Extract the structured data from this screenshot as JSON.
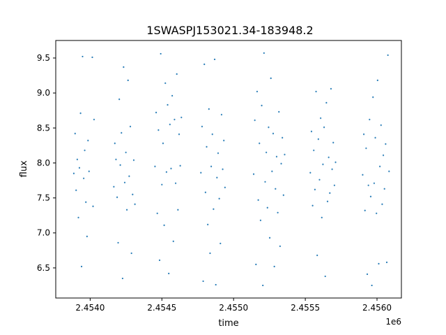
{
  "chart_data": {
    "type": "scatter",
    "title": "1SWASPJ153021.34-183948.2",
    "xlabel": "time",
    "ylabel": "flux",
    "x_offset_label": "1e6",
    "xlim": [
      2453760,
      2456170
    ],
    "ylim": [
      6.07,
      9.75
    ],
    "x_ticks": [
      2454000,
      2454500,
      2455000,
      2455500,
      2456000
    ],
    "x_tick_labels": [
      "2.4540",
      "2.4545",
      "2.4550",
      "2.4555",
      "2.4560"
    ],
    "y_ticks": [
      6.5,
      7.0,
      7.5,
      8.0,
      8.5,
      9.0,
      9.5
    ],
    "y_tick_labels": [
      "6.5",
      "7.0",
      "7.5",
      "8.0",
      "8.5",
      "9.0",
      "9.5"
    ],
    "grid": false,
    "marker_color": "#1f77b4",
    "series": [
      {
        "values": [
          [
            2453886,
            7.85
          ],
          [
            2453895,
            8.42
          ],
          [
            2453902,
            7.61
          ],
          [
            2453910,
            8.05
          ],
          [
            2453918,
            7.22
          ],
          [
            2453925,
            7.93
          ],
          [
            2453933,
            8.71
          ],
          [
            2453940,
            6.52
          ],
          [
            2453947,
            9.52
          ],
          [
            2453955,
            7.78
          ],
          [
            2453962,
            8.18
          ],
          [
            2453970,
            7.44
          ],
          [
            2453978,
            6.95
          ],
          [
            2453985,
            8.32
          ],
          [
            2453992,
            7.88
          ],
          [
            2454015,
            9.51
          ],
          [
            2454020,
            7.38
          ],
          [
            2454027,
            8.62
          ],
          [
            2454165,
            7.66
          ],
          [
            2454172,
            8.28
          ],
          [
            2454180,
            8.05
          ],
          [
            2454188,
            7.51
          ],
          [
            2454195,
            6.86
          ],
          [
            2454203,
            8.91
          ],
          [
            2454210,
            7.97
          ],
          [
            2454218,
            8.43
          ],
          [
            2454226,
            6.35
          ],
          [
            2454233,
            9.37
          ],
          [
            2454241,
            7.72
          ],
          [
            2454249,
            8.15
          ],
          [
            2454256,
            7.33
          ],
          [
            2454264,
            9.18
          ],
          [
            2454272,
            7.81
          ],
          [
            2454280,
            8.52
          ],
          [
            2454288,
            6.71
          ],
          [
            2454296,
            7.55
          ],
          [
            2454304,
            8.04
          ],
          [
            2454312,
            7.41
          ],
          [
            2454452,
            7.95
          ],
          [
            2454460,
            8.72
          ],
          [
            2454468,
            7.28
          ],
          [
            2454476,
            8.47
          ],
          [
            2454484,
            6.61
          ],
          [
            2454492,
            9.56
          ],
          [
            2454500,
            7.69
          ],
          [
            2454508,
            8.28
          ],
          [
            2454516,
            7.11
          ],
          [
            2454524,
            9.14
          ],
          [
            2454532,
            7.87
          ],
          [
            2454540,
            8.83
          ],
          [
            2454548,
            6.42
          ],
          [
            2454556,
            8.55
          ],
          [
            2454564,
            7.92
          ],
          [
            2454572,
            8.96
          ],
          [
            2454580,
            6.88
          ],
          [
            2454588,
            8.62
          ],
          [
            2454596,
            7.71
          ],
          [
            2454604,
            9.27
          ],
          [
            2454612,
            7.33
          ],
          [
            2454620,
            8.41
          ],
          [
            2454628,
            7.96
          ],
          [
            2454636,
            8.65
          ],
          [
            2454772,
            7.86
          ],
          [
            2454780,
            8.52
          ],
          [
            2454788,
            6.31
          ],
          [
            2454796,
            9.41
          ],
          [
            2454804,
            7.58
          ],
          [
            2454812,
            8.23
          ],
          [
            2454820,
            7.12
          ],
          [
            2454828,
            8.77
          ],
          [
            2454836,
            6.71
          ],
          [
            2454844,
            7.95
          ],
          [
            2454852,
            8.41
          ],
          [
            2454860,
            7.34
          ],
          [
            2454868,
            9.48
          ],
          [
            2454876,
            6.26
          ],
          [
            2454884,
            7.79
          ],
          [
            2454892,
            8.14
          ],
          [
            2454900,
            7.49
          ],
          [
            2454908,
            6.85
          ],
          [
            2454916,
            8.69
          ],
          [
            2454924,
            7.91
          ],
          [
            2454932,
            8.32
          ],
          [
            2454940,
            7.65
          ],
          [
            2455140,
            7.84
          ],
          [
            2455148,
            8.61
          ],
          [
            2455156,
            6.55
          ],
          [
            2455164,
            9.02
          ],
          [
            2455172,
            7.47
          ],
          [
            2455180,
            8.28
          ],
          [
            2455188,
            7.18
          ],
          [
            2455196,
            8.82
          ],
          [
            2455204,
            6.25
          ],
          [
            2455212,
            9.57
          ],
          [
            2455220,
            7.73
          ],
          [
            2455228,
            8.15
          ],
          [
            2455236,
            7.36
          ],
          [
            2455244,
            8.51
          ],
          [
            2455252,
            6.93
          ],
          [
            2455260,
            9.21
          ],
          [
            2455268,
            7.88
          ],
          [
            2455276,
            8.42
          ],
          [
            2455284,
            6.52
          ],
          [
            2455292,
            7.63
          ],
          [
            2455300,
            8.09
          ],
          [
            2455308,
            7.29
          ],
          [
            2455316,
            8.73
          ],
          [
            2455324,
            6.81
          ],
          [
            2455332,
            7.99
          ],
          [
            2455340,
            8.36
          ],
          [
            2455348,
            7.54
          ],
          [
            2455356,
            8.12
          ],
          [
            2455535,
            7.86
          ],
          [
            2455543,
            8.45
          ],
          [
            2455551,
            7.39
          ],
          [
            2455559,
            8.18
          ],
          [
            2455567,
            7.62
          ],
          [
            2455575,
            9.02
          ],
          [
            2455583,
            6.68
          ],
          [
            2455591,
            8.34
          ],
          [
            2455599,
            7.76
          ],
          [
            2455607,
            8.64
          ],
          [
            2455615,
            7.22
          ],
          [
            2455623,
            7.98
          ],
          [
            2455631,
            8.51
          ],
          [
            2455639,
            6.38
          ],
          [
            2455647,
            8.86
          ],
          [
            2455655,
            7.45
          ],
          [
            2455663,
            8.08
          ],
          [
            2455671,
            7.57
          ],
          [
            2455679,
            9.06
          ],
          [
            2455687,
            7.91
          ],
          [
            2455695,
            8.29
          ],
          [
            2455703,
            7.68
          ],
          [
            2455711,
            8.01
          ],
          [
            2455900,
            7.83
          ],
          [
            2455908,
            8.41
          ],
          [
            2455916,
            7.32
          ],
          [
            2455924,
            8.21
          ],
          [
            2455932,
            6.41
          ],
          [
            2455940,
            7.68
          ],
          [
            2455948,
            8.62
          ],
          [
            2455956,
            7.52
          ],
          [
            2455964,
            6.25
          ],
          [
            2455972,
            8.94
          ],
          [
            2455980,
            7.71
          ],
          [
            2455988,
            8.36
          ],
          [
            2455996,
            7.28
          ],
          [
            2456004,
            9.18
          ],
          [
            2456012,
            6.56
          ],
          [
            2456020,
            7.95
          ],
          [
            2456028,
            8.54
          ],
          [
            2456036,
            7.41
          ],
          [
            2456044,
            8.11
          ],
          [
            2456052,
            7.63
          ],
          [
            2456060,
            8.27
          ],
          [
            2456068,
            6.58
          ],
          [
            2456076,
            9.54
          ],
          [
            2456084,
            7.88
          ]
        ]
      }
    ]
  }
}
